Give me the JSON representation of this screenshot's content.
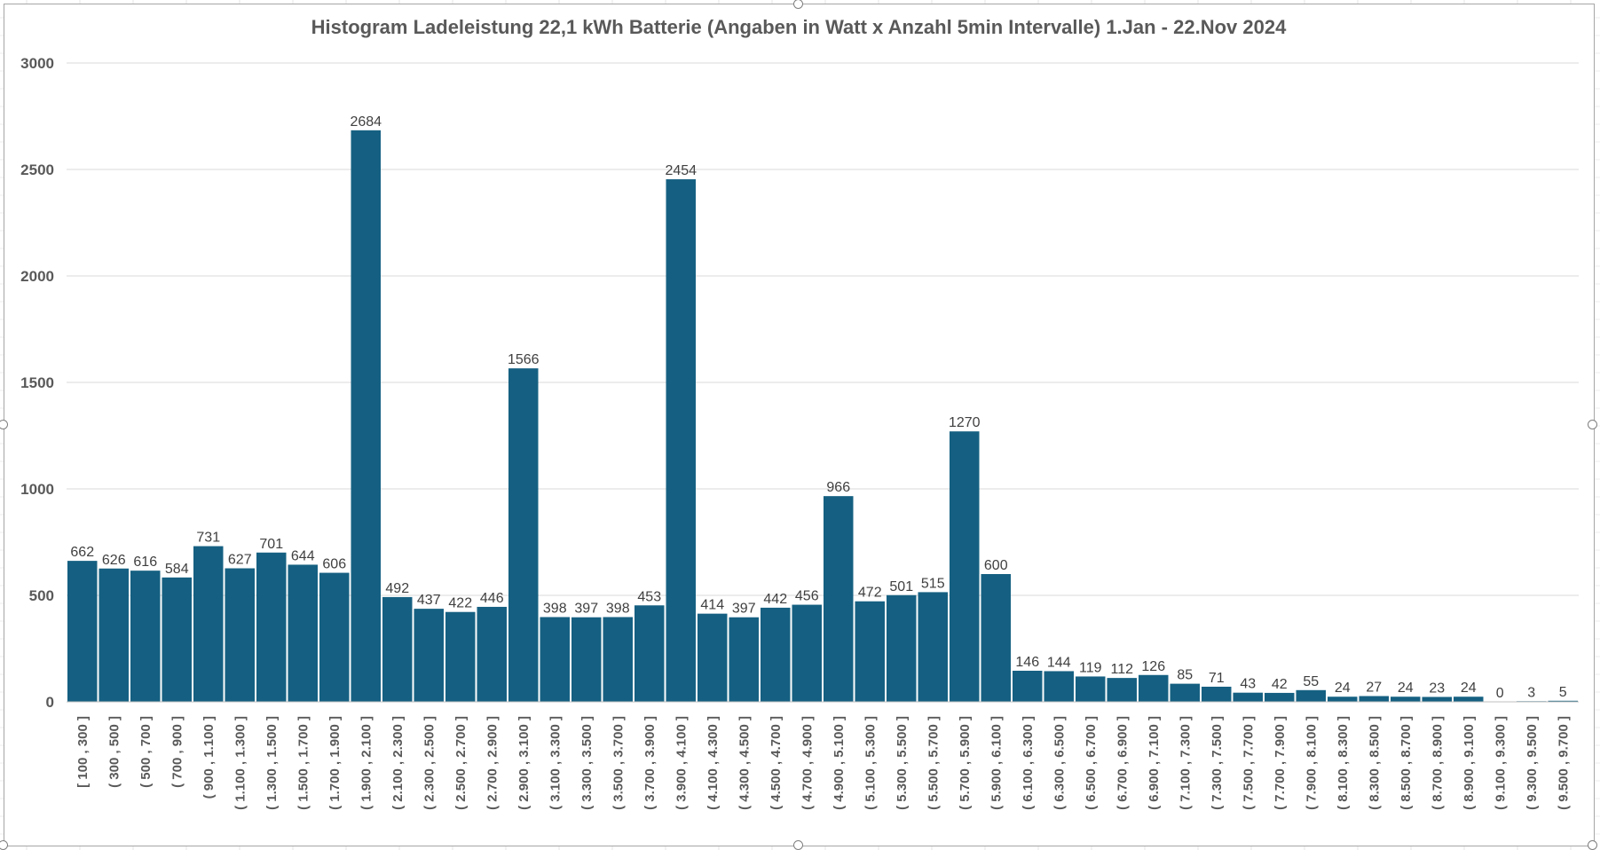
{
  "chart_data": {
    "type": "bar",
    "title": "Histogram Ladeleistung 22,1 kWh Batterie (Angaben in Watt x Anzahl 5min Intervalle) 1.Jan - 22.Nov 2024",
    "xlabel": "",
    "ylabel": "",
    "ylim": [
      0,
      3000
    ],
    "yticks": [
      "0",
      "500",
      "1000",
      "1500",
      "2000",
      "2500",
      "3000"
    ],
    "grid": true,
    "legend": "none",
    "color": "#156082",
    "categories": [
      "[ 100 ,  300 ]",
      "( 300 ,  500 ]",
      "( 500 ,  700 ]",
      "( 700 ,  900 ]",
      "( 900 ,  1.100 ]",
      "( 1.100 ,  1.300 ]",
      "( 1.300 ,  1.500 ]",
      "( 1.500 ,  1.700 ]",
      "( 1.700 ,  1.900 ]",
      "( 1.900 ,  2.100 ]",
      "( 2.100 ,  2.300 ]",
      "( 2.300 ,  2.500 ]",
      "( 2.500 ,  2.700 ]",
      "( 2.700 ,  2.900 ]",
      "( 2.900 ,  3.100 ]",
      "( 3.100 ,  3.300 ]",
      "( 3.300 ,  3.500 ]",
      "( 3.500 ,  3.700 ]",
      "( 3.700 ,  3.900 ]",
      "( 3.900 ,  4.100 ]",
      "( 4.100 ,  4.300 ]",
      "( 4.300 ,  4.500 ]",
      "( 4.500 ,  4.700 ]",
      "( 4.700 ,  4.900 ]",
      "( 4.900 ,  5.100 ]",
      "( 5.100 ,  5.300 ]",
      "( 5.300 ,  5.500 ]",
      "( 5.500 ,  5.700 ]",
      "( 5.700 ,  5.900 ]",
      "( 5.900 ,  6.100 ]",
      "( 6.100 ,  6.300 ]",
      "( 6.300 ,  6.500 ]",
      "( 6.500 ,  6.700 ]",
      "( 6.700 ,  6.900 ]",
      "( 6.900 ,  7.100 ]",
      "( 7.100 ,  7.300 ]",
      "( 7.300 ,  7.500 ]",
      "( 7.500 ,  7.700 ]",
      "( 7.700 ,  7.900 ]",
      "( 7.900 ,  8.100 ]",
      "( 8.100 ,  8.300 ]",
      "( 8.300 ,  8.500 ]",
      "( 8.500 ,  8.700 ]",
      "( 8.700 ,  8.900 ]",
      "( 8.900 ,  9.100 ]",
      "( 9.100 ,  9.300 ]",
      "( 9.300 ,  9.500 ]",
      "( 9.500 ,  9.700 ]"
    ],
    "values": [
      662,
      626,
      616,
      584,
      731,
      627,
      701,
      644,
      606,
      2684,
      492,
      437,
      422,
      446,
      1566,
      398,
      397,
      398,
      453,
      2454,
      414,
      397,
      442,
      456,
      966,
      472,
      501,
      515,
      1270,
      600,
      146,
      144,
      119,
      112,
      126,
      85,
      71,
      43,
      42,
      55,
      24,
      27,
      24,
      23,
      24,
      0,
      3,
      5
    ]
  }
}
